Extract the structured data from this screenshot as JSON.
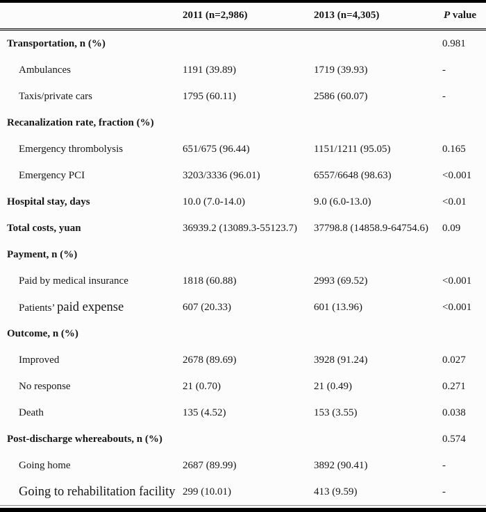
{
  "table": {
    "header": {
      "label": "",
      "col_2011": "2011 (n=2,986)",
      "col_2013": "2013 (n=4,305)",
      "p_italic": "P",
      "p_rest": " value"
    },
    "rows": [
      {
        "label_runs": [
          {
            "text": "Transportation, n (%)"
          }
        ],
        "bold": true,
        "indent": false,
        "v2011": "",
        "v2013": "",
        "p": "0.981"
      },
      {
        "label_runs": [
          {
            "text": "Ambulances"
          }
        ],
        "bold": false,
        "indent": true,
        "v2011": "1191 (39.89)",
        "v2013": "1719 (39.93)",
        "p": "-"
      },
      {
        "label_runs": [
          {
            "text": "Taxis/private cars"
          }
        ],
        "bold": false,
        "indent": true,
        "v2011": "1795 (60.11)",
        "v2013": "2586 (60.07)",
        "p": "-"
      },
      {
        "label_runs": [
          {
            "text": "Recanalization rate, fraction (%)"
          }
        ],
        "bold": true,
        "indent": false,
        "v2011": "",
        "v2013": "",
        "p": ""
      },
      {
        "label_runs": [
          {
            "text": "Emergency thrombolysis"
          }
        ],
        "bold": false,
        "indent": true,
        "v2011": "651/675 (96.44)",
        "v2013": "1151/1211 (95.05)",
        "p": "0.165"
      },
      {
        "label_runs": [
          {
            "text": "Emergency PCI"
          }
        ],
        "bold": false,
        "indent": true,
        "v2011": "3203/3336 (96.01)",
        "v2013": "6557/6648 (98.63)",
        "p": "<0.001"
      },
      {
        "label_runs": [
          {
            "text": "Hospital stay, days"
          }
        ],
        "bold": true,
        "indent": false,
        "v2011": "10.0 (7.0-14.0)",
        "v2013": "9.0 (6.0-13.0)",
        "p": "<0.01"
      },
      {
        "label_runs": [
          {
            "text": "Total costs, yuan"
          }
        ],
        "bold": true,
        "indent": false,
        "v2011": "36939.2 (13089.3-55123.7)",
        "v2013": "37798.8 (14858.9-64754.6)",
        "p": "0.09"
      },
      {
        "label_runs": [
          {
            "text": "Payment, n (%)"
          }
        ],
        "bold": true,
        "indent": false,
        "v2011": "",
        "v2013": "",
        "p": ""
      },
      {
        "label_runs": [
          {
            "text": "Paid by medical insurance"
          }
        ],
        "bold": false,
        "indent": true,
        "v2011": "1818 (60.88)",
        "v2013": "2993 (69.52)",
        "p": "<0.001"
      },
      {
        "label_runs": [
          {
            "text": "Patients’ "
          },
          {
            "text": "paid expense",
            "large": true
          }
        ],
        "bold": false,
        "indent": true,
        "v2011": "607 (20.33)",
        "v2013": "601 (13.96)",
        "p": "<0.001"
      },
      {
        "label_runs": [
          {
            "text": "Outcome, n (%)"
          }
        ],
        "bold": true,
        "indent": false,
        "v2011": "",
        "v2013": "",
        "p": ""
      },
      {
        "label_runs": [
          {
            "text": "Improved"
          }
        ],
        "bold": false,
        "indent": true,
        "v2011": "2678 (89.69)",
        "v2013": "3928 (91.24)",
        "p": "0.027"
      },
      {
        "label_runs": [
          {
            "text": "No response"
          }
        ],
        "bold": false,
        "indent": true,
        "v2011": "21 (0.70)",
        "v2013": "21 (0.49)",
        "p": "0.271"
      },
      {
        "label_runs": [
          {
            "text": "Death"
          }
        ],
        "bold": false,
        "indent": true,
        "v2011": "135 (4.52)",
        "v2013": "153 (3.55)",
        "p": "0.038"
      },
      {
        "label_runs": [
          {
            "text": "Post-discharge whereabouts, n (%)"
          }
        ],
        "bold": true,
        "indent": false,
        "v2011": "",
        "v2013": "",
        "p": "0.574"
      },
      {
        "label_runs": [
          {
            "text": "Going home"
          }
        ],
        "bold": false,
        "indent": true,
        "v2011": "2687 (89.99)",
        "v2013": "3892 (90.41)",
        "p": "-"
      },
      {
        "label_runs": [
          {
            "text": "Going to rehabilitation facility",
            "large": true
          }
        ],
        "bold": false,
        "indent": true,
        "v2011": "299 (10.01)",
        "v2013": "413 (9.59)",
        "p": "-"
      }
    ]
  }
}
